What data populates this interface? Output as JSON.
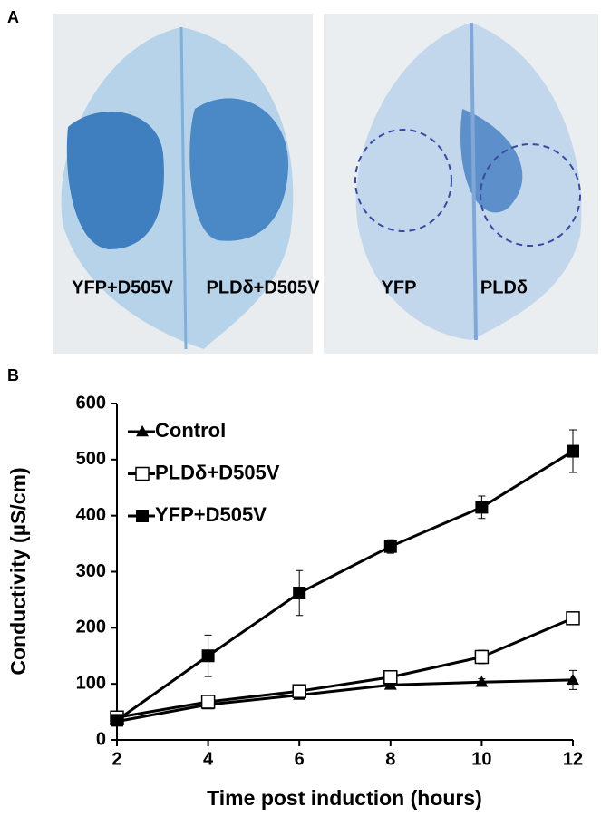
{
  "panels": {
    "a": {
      "label": "A",
      "leaf_labels": [
        "YFP+D505V",
        "PLDδ+D505V",
        "YFP",
        "PLDδ"
      ]
    },
    "b": {
      "label": "B"
    }
  },
  "chart_data": {
    "type": "line",
    "x_label": "Time post induction (hours)",
    "y_label": "Conductivity (µS/cm)",
    "x": [
      2,
      4,
      6,
      8,
      10,
      12
    ],
    "series": [
      {
        "name": "Control",
        "color": "#000000",
        "marker": "triangle",
        "values": [
          33,
          63,
          80,
          98,
          103,
          107
        ],
        "errors": [
          3,
          5,
          5,
          5,
          6,
          17
        ]
      },
      {
        "name": "PLDδ+D505V",
        "color": "#000000",
        "marker": "open-square",
        "values": [
          40,
          68,
          87,
          112,
          148,
          217
        ],
        "errors": [
          5,
          5,
          5,
          5,
          12,
          10
        ]
      },
      {
        "name": "YFP+D505V",
        "color": "#000000",
        "marker": "square",
        "values": [
          35,
          150,
          262,
          345,
          415,
          515
        ],
        "errors": [
          5,
          37,
          40,
          12,
          20,
          38
        ]
      }
    ],
    "xlim": [
      2,
      12
    ],
    "ylim": [
      0,
      600
    ],
    "xticks": [
      2,
      4,
      6,
      8,
      10,
      12
    ],
    "yticks": [
      0,
      100,
      200,
      300,
      400,
      500,
      600
    ],
    "legend": "upper-left"
  }
}
